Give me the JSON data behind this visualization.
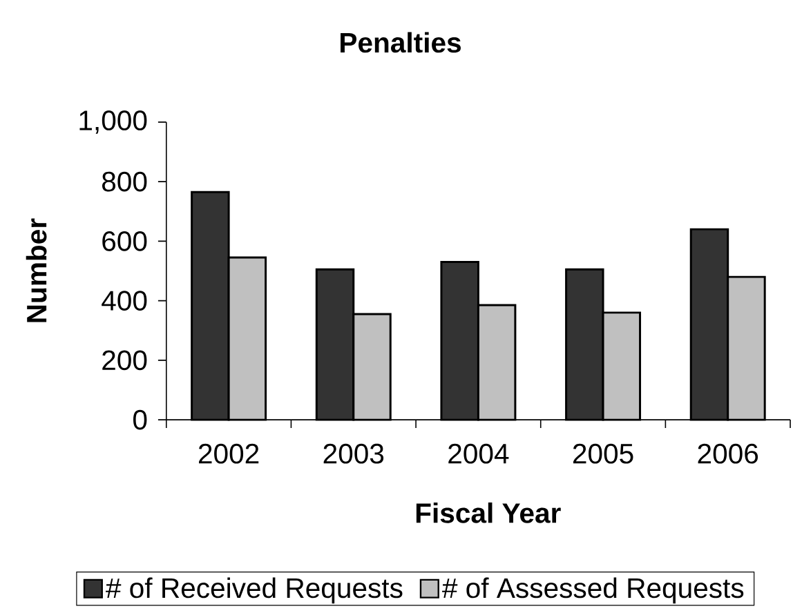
{
  "chart_data": {
    "type": "bar",
    "title": "Penalties",
    "xlabel": "Fiscal Year",
    "ylabel": "Number",
    "categories": [
      "2002",
      "2003",
      "2004",
      "2005",
      "2006"
    ],
    "series": [
      {
        "name": "# of Received Requests",
        "color": "#333333",
        "values": [
          765,
          505,
          530,
          505,
          640
        ]
      },
      {
        "name": "# of Assessed Requests",
        "color": "#c0c0c0",
        "values": [
          545,
          355,
          385,
          360,
          480
        ]
      }
    ],
    "ylim": [
      0,
      1000
    ],
    "yticks": [
      0,
      200,
      400,
      600,
      800,
      {
        "value": 1000,
        "label": "1,000"
      }
    ],
    "legend": "bottom"
  }
}
